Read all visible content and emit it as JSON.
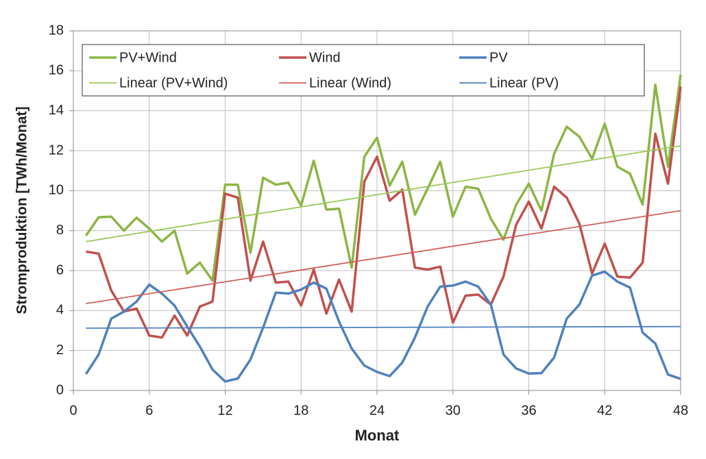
{
  "chart_data": {
    "type": "line",
    "xlabel": "Monat",
    "ylabel": "Stromproduktion  [TWh/Monat]",
    "x": [
      1,
      2,
      3,
      4,
      5,
      6,
      7,
      8,
      9,
      10,
      11,
      12,
      13,
      14,
      15,
      16,
      17,
      18,
      19,
      20,
      21,
      22,
      23,
      24,
      25,
      26,
      27,
      28,
      29,
      30,
      31,
      32,
      33,
      34,
      35,
      36,
      37,
      38,
      39,
      40,
      41,
      42,
      43,
      44,
      45,
      46,
      47,
      48
    ],
    "series": [
      {
        "name": "PV+Wind",
        "color": "#8db545",
        "linewidth": 3.5,
        "values": [
          7.75,
          8.67,
          8.7,
          8.0,
          8.65,
          8.1,
          7.45,
          8.0,
          5.85,
          6.4,
          5.5,
          10.3,
          10.3,
          6.9,
          10.65,
          10.3,
          10.4,
          9.25,
          11.5,
          9.05,
          9.1,
          6.15,
          11.7,
          12.65,
          10.25,
          11.45,
          8.8,
          10.1,
          11.45,
          8.7,
          10.2,
          10.1,
          8.6,
          7.55,
          9.3,
          10.35,
          9.0,
          11.85,
          13.2,
          12.7,
          11.6,
          13.35,
          11.2,
          10.85,
          9.3,
          15.3,
          11.2,
          15.8
        ]
      },
      {
        "name": "Wind",
        "color": "#c0504d",
        "linewidth": 3.5,
        "values": [
          6.95,
          6.85,
          5.0,
          3.95,
          4.1,
          2.75,
          2.65,
          3.75,
          2.75,
          4.2,
          4.45,
          9.85,
          9.65,
          5.5,
          7.45,
          5.4,
          5.45,
          4.25,
          6.05,
          3.85,
          5.55,
          3.95,
          10.45,
          11.7,
          9.5,
          10.05,
          6.15,
          6.05,
          6.2,
          3.4,
          4.75,
          4.8,
          4.3,
          5.7,
          8.3,
          9.45,
          8.1,
          10.2,
          9.65,
          8.35,
          5.85,
          7.35,
          5.7,
          5.65,
          6.4,
          12.85,
          10.35,
          15.2
        ]
      },
      {
        "name": "PV",
        "color": "#4f81bd",
        "linewidth": 3.5,
        "values": [
          0.82,
          1.8,
          3.6,
          3.95,
          4.45,
          5.3,
          4.85,
          4.25,
          3.2,
          2.2,
          1.05,
          0.45,
          0.6,
          1.55,
          3.15,
          4.9,
          4.85,
          5.05,
          5.4,
          5.1,
          3.45,
          2.1,
          1.25,
          0.93,
          0.72,
          1.4,
          2.65,
          4.2,
          5.2,
          5.25,
          5.45,
          5.2,
          4.3,
          1.8,
          1.1,
          0.85,
          0.87,
          1.65,
          3.6,
          4.3,
          5.75,
          5.95,
          5.45,
          5.15,
          2.9,
          2.35,
          0.8,
          0.58
        ]
      },
      {
        "name": "Linear (PV+Wind)",
        "color": "#9bc95a",
        "linewidth": 1.8,
        "x": [
          1,
          48
        ],
        "values": [
          7.45,
          12.25
        ]
      },
      {
        "name": "Linear (Wind)",
        "color": "#d0605c",
        "linewidth": 1.8,
        "x": [
          1,
          48
        ],
        "values": [
          4.35,
          9.0
        ]
      },
      {
        "name": "Linear (PV)",
        "color": "#4f81bd",
        "linewidth": 1.8,
        "x": [
          1,
          48
        ],
        "values": [
          3.12,
          3.2
        ]
      }
    ],
    "xlim": [
      0,
      48
    ],
    "xticks": [
      0,
      6,
      12,
      18,
      24,
      30,
      36,
      42,
      48
    ],
    "ylim": [
      0,
      18
    ],
    "yticks": [
      0,
      2,
      4,
      6,
      8,
      10,
      12,
      14,
      16,
      18
    ],
    "grid": true,
    "legend": "top"
  }
}
